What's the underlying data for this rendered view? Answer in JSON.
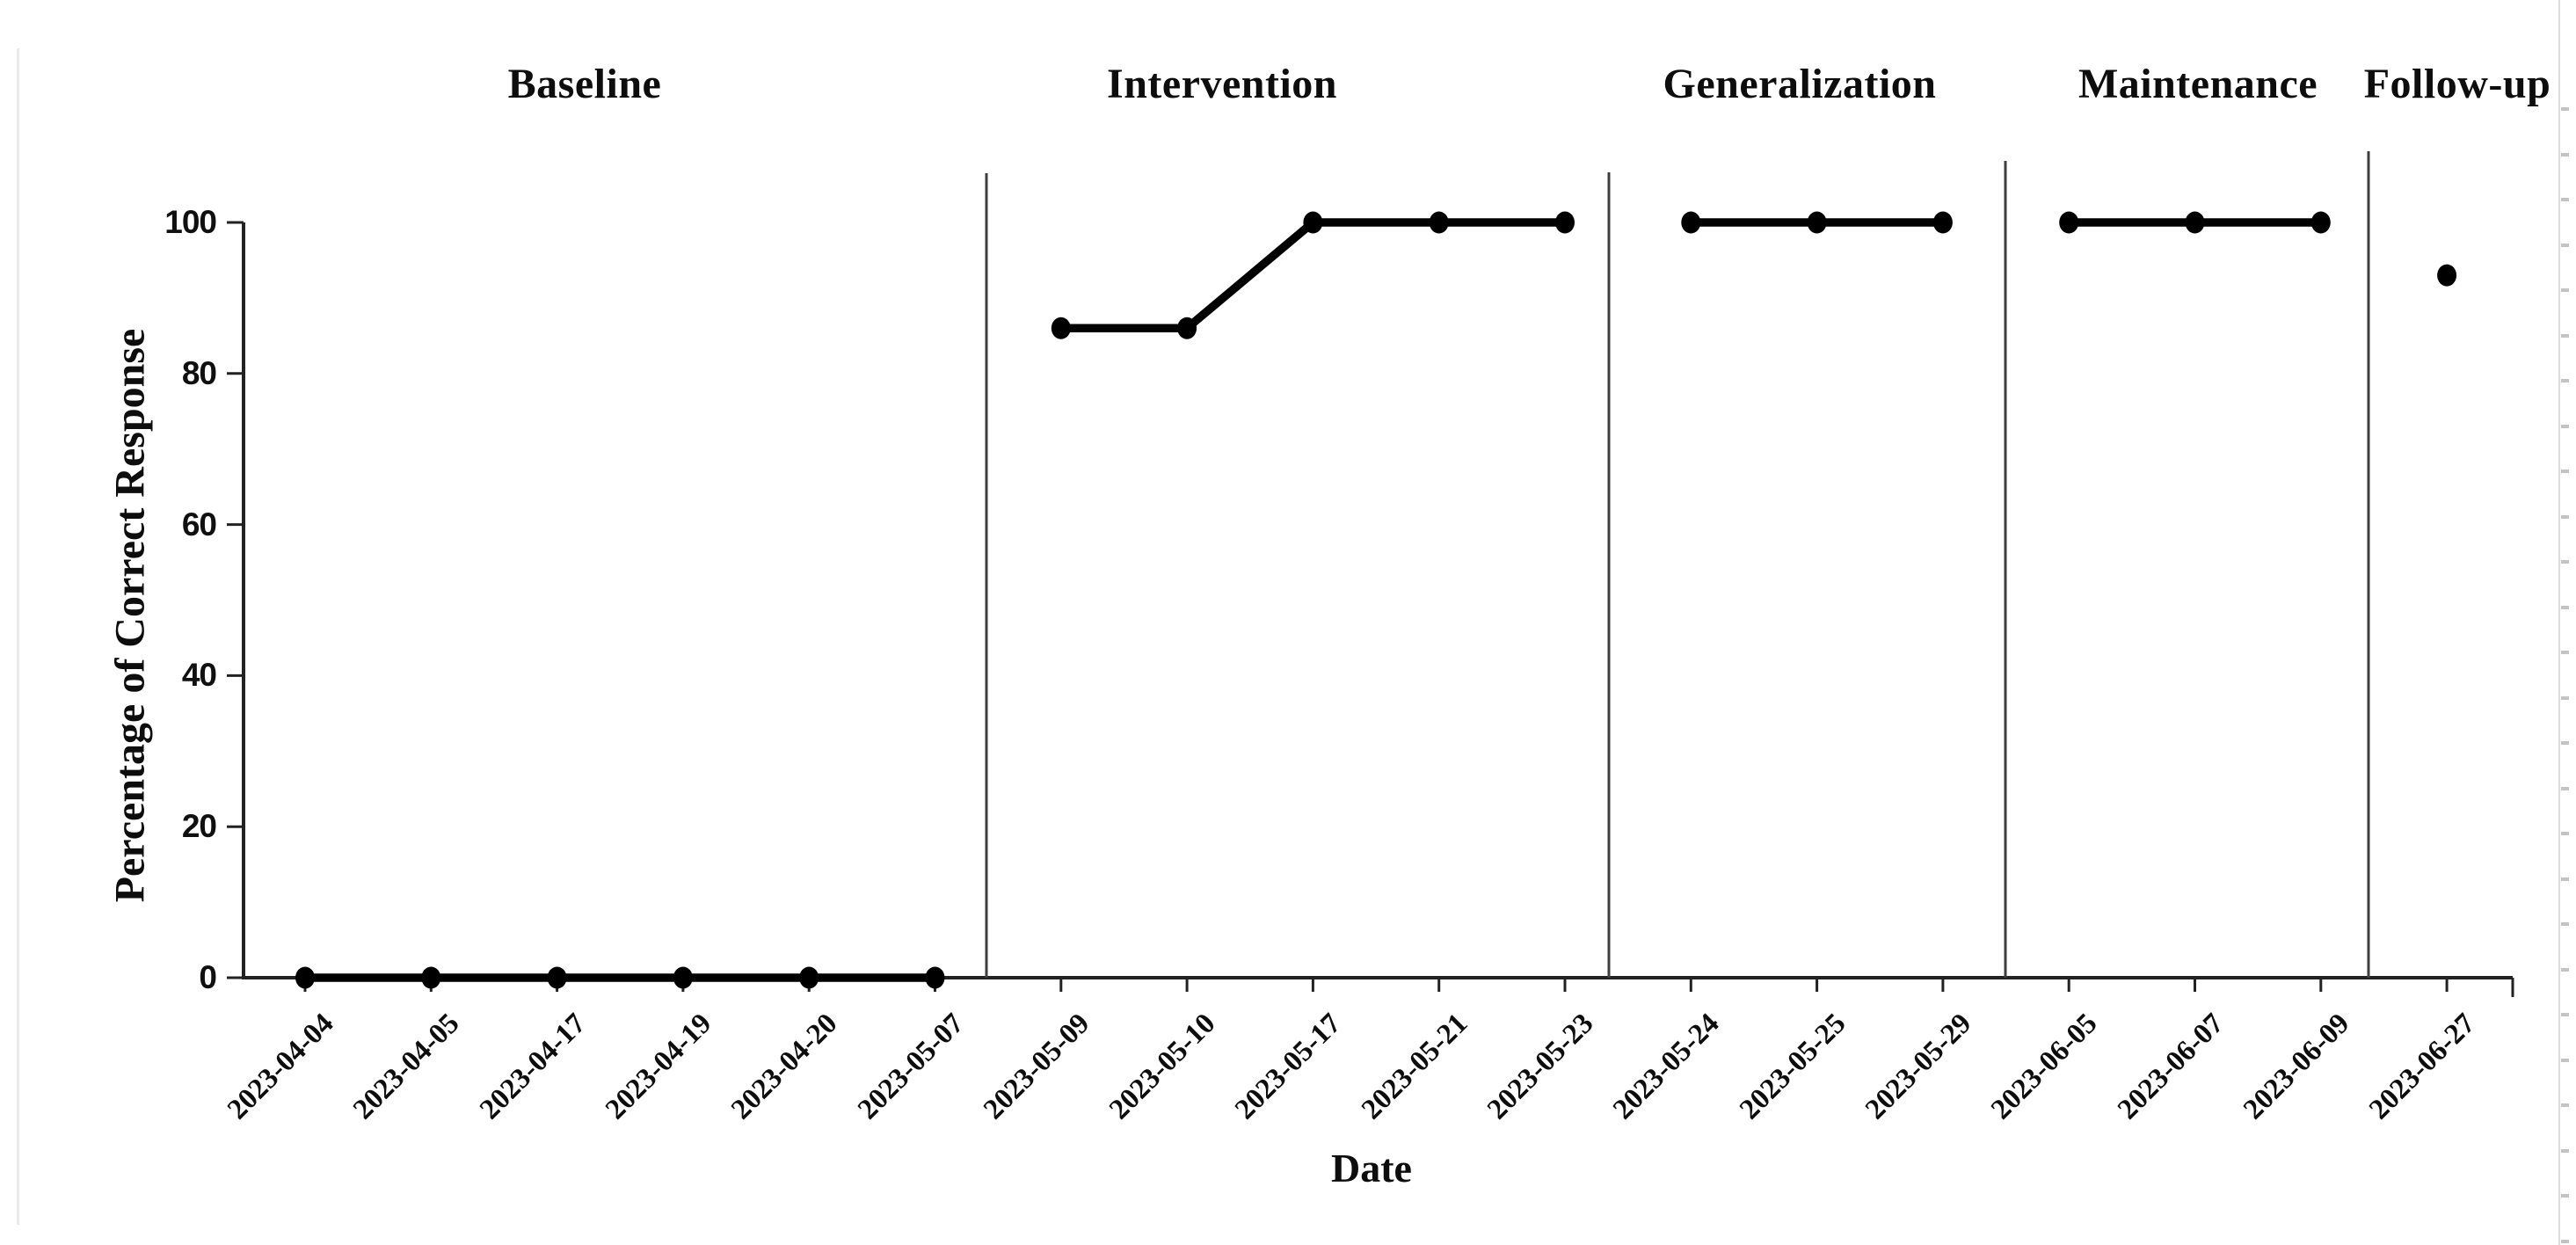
{
  "figure": {
    "background": "#ffffff",
    "page_left_border_color": "#e9e9e9",
    "page_right_border_color": "#dcdcdc",
    "ruler_mark_color": "#c3c3c3",
    "ink_color": "#000000",
    "axis_color": "#222222",
    "separator_color": "#3d3d3d"
  },
  "chart_data": {
    "type": "line",
    "title": "",
    "xlabel": "Date",
    "ylabel": "Percentage of Correct Response",
    "ylim": [
      0,
      100
    ],
    "yticks": [
      0,
      20,
      40,
      60,
      80,
      100
    ],
    "grid": false,
    "legend": "none",
    "marker": "filled-circle",
    "series_color": "#000000",
    "phases": [
      {
        "label": "Baseline",
        "label_x": 665,
        "points": [
          {
            "date": "2023-04-04",
            "value": 0
          },
          {
            "date": "2023-04-05",
            "value": 0
          },
          {
            "date": "2023-04-17",
            "value": 0
          },
          {
            "date": "2023-04-19",
            "value": 0
          },
          {
            "date": "2023-04-20",
            "value": 0
          },
          {
            "date": "2023-05-07",
            "value": 0
          }
        ]
      },
      {
        "label": "Intervention",
        "label_x": 1390,
        "points": [
          {
            "date": "2023-05-09",
            "value": 86
          },
          {
            "date": "2023-05-10",
            "value": 86
          },
          {
            "date": "2023-05-17",
            "value": 100
          },
          {
            "date": "2023-05-21",
            "value": 100
          },
          {
            "date": "2023-05-23",
            "value": 100
          }
        ]
      },
      {
        "label": "Generalization",
        "label_x": 2047,
        "points": [
          {
            "date": "2023-05-24",
            "value": 100
          },
          {
            "date": "2023-05-25",
            "value": 100
          },
          {
            "date": "2023-05-29",
            "value": 100
          }
        ]
      },
      {
        "label": "Maintenance",
        "label_x": 2500,
        "points": [
          {
            "date": "2023-06-05",
            "value": 100
          },
          {
            "date": "2023-06-07",
            "value": 100
          },
          {
            "date": "2023-06-09",
            "value": 100
          }
        ]
      },
      {
        "label": "Follow-up",
        "label_x": 2795,
        "points": [
          {
            "date": "2023-06-27",
            "value": 93
          }
        ]
      }
    ],
    "layout": {
      "x_first_point": 347,
      "x_point_step": 143.3,
      "y_value_zero": 1112,
      "y_value_hundred": 253,
      "y_axis_x": 277,
      "x_axis_right": 2858,
      "y_tick_len": 19,
      "x_tick_len": 16,
      "separator_x": [
        1122,
        1830,
        2281,
        2694
      ],
      "separator_top_y": [
        197,
        196,
        183,
        172
      ],
      "data_line_width": 9.5,
      "marker_rx": 11,
      "marker_ry": 12.5,
      "axis_line_width": 4,
      "separator_line_width": 3,
      "date_label_anchor_dx": 14,
      "date_label_anchor_y": 1146
    }
  }
}
